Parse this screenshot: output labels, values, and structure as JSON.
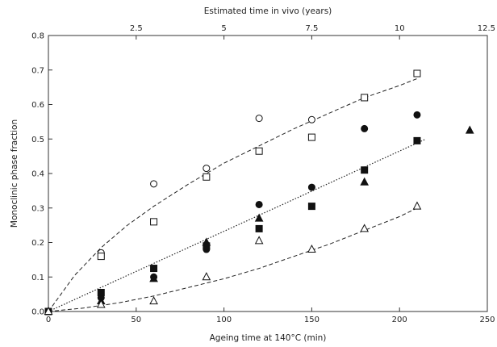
{
  "chart_data": {
    "type": "scatter",
    "xlabel": "Ageing time at 140°C (min)",
    "ylabel": "Monoclinic phase fraction",
    "x2label": "Estimated time in vivo (years)",
    "xlim": [
      0,
      250
    ],
    "ylim": [
      0,
      0.8
    ],
    "x2lim": [
      0,
      12.5
    ],
    "x_ticks": [
      "0",
      "50",
      "100",
      "150",
      "200",
      "250"
    ],
    "y_ticks": [
      "0.0",
      "0.1",
      "0.2",
      "0.3",
      "0.4",
      "0.5",
      "0.6",
      "0.7",
      "0.8"
    ],
    "x2_ticks": [
      "2.5",
      "5",
      "7.5",
      "10",
      "12.5"
    ],
    "grid": false,
    "series": [
      {
        "marker": "circle-open",
        "points": [
          [
            0,
            0
          ],
          [
            30,
            0.17
          ],
          [
            60,
            0.37
          ],
          [
            90,
            0.415
          ],
          [
            120,
            0.56
          ],
          [
            150,
            0.556
          ]
        ]
      },
      {
        "marker": "square-open",
        "points": [
          [
            0,
            0
          ],
          [
            30,
            0.16
          ],
          [
            60,
            0.26
          ],
          [
            90,
            0.39
          ],
          [
            120,
            0.465
          ],
          [
            150,
            0.505
          ],
          [
            180,
            0.62
          ],
          [
            210,
            0.69
          ]
        ]
      },
      {
        "marker": "circle-filled",
        "points": [
          [
            0,
            0
          ],
          [
            30,
            0.04
          ],
          [
            60,
            0.1
          ],
          [
            90,
            0.18
          ],
          [
            120,
            0.31
          ],
          [
            150,
            0.36
          ],
          [
            180,
            0.53
          ],
          [
            210,
            0.57
          ]
        ]
      },
      {
        "marker": "square-filled",
        "points": [
          [
            0,
            0
          ],
          [
            30,
            0.055
          ],
          [
            60,
            0.125
          ],
          [
            90,
            0.19
          ],
          [
            120,
            0.24
          ],
          [
            150,
            0.305
          ],
          [
            180,
            0.41
          ],
          [
            210,
            0.495
          ]
        ]
      },
      {
        "marker": "triangle-filled",
        "points": [
          [
            0,
            0
          ],
          [
            30,
            0.03
          ],
          [
            60,
            0.095
          ],
          [
            90,
            0.2
          ],
          [
            120,
            0.27
          ],
          [
            180,
            0.375
          ],
          [
            240,
            0.525
          ]
        ]
      },
      {
        "marker": "triangle-open",
        "points": [
          [
            0,
            0
          ],
          [
            30,
            0.02
          ],
          [
            60,
            0.03
          ],
          [
            90,
            0.1
          ],
          [
            120,
            0.205
          ],
          [
            150,
            0.18
          ],
          [
            180,
            0.24
          ],
          [
            210,
            0.305
          ]
        ]
      }
    ],
    "fit_lines": [
      {
        "style": "dashed",
        "points": [
          [
            0,
            0
          ],
          [
            15,
            0.105
          ],
          [
            30,
            0.185
          ],
          [
            45,
            0.25
          ],
          [
            60,
            0.305
          ],
          [
            80,
            0.37
          ],
          [
            100,
            0.43
          ],
          [
            120,
            0.48
          ],
          [
            140,
            0.53
          ],
          [
            160,
            0.575
          ],
          [
            180,
            0.62
          ],
          [
            200,
            0.655
          ],
          [
            210,
            0.675
          ]
        ]
      },
      {
        "style": "dotted",
        "points": [
          [
            0,
            0
          ],
          [
            215,
            0.5
          ]
        ]
      },
      {
        "style": "dashed",
        "points": [
          [
            0,
            0
          ],
          [
            20,
            0.01
          ],
          [
            40,
            0.025
          ],
          [
            60,
            0.045
          ],
          [
            80,
            0.07
          ],
          [
            100,
            0.095
          ],
          [
            120,
            0.125
          ],
          [
            140,
            0.16
          ],
          [
            160,
            0.195
          ],
          [
            180,
            0.235
          ],
          [
            200,
            0.275
          ],
          [
            210,
            0.3
          ]
        ]
      }
    ]
  }
}
